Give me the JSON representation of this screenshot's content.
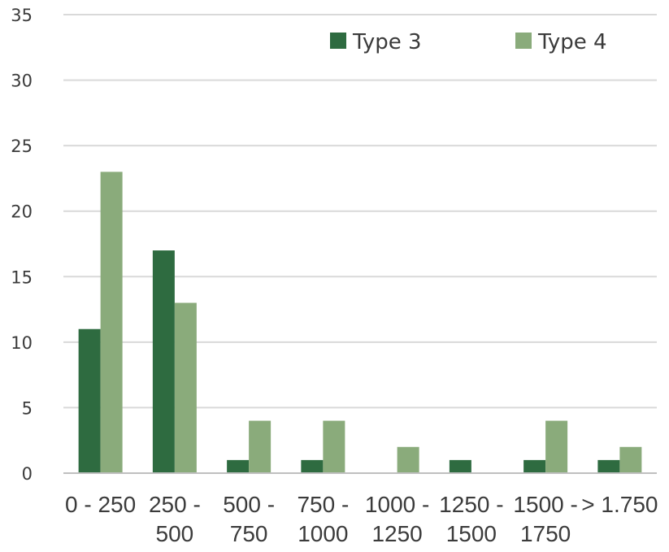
{
  "chart_data": {
    "type": "bar",
    "categories": [
      [
        "0 - 250"
      ],
      [
        "250 -",
        "500"
      ],
      [
        "500 -",
        "750"
      ],
      [
        "750 -",
        "1000"
      ],
      [
        "1000 -",
        "1250"
      ],
      [
        "1250 -",
        "1500"
      ],
      [
        "1500 -",
        "1750"
      ],
      [
        "> 1.750"
      ]
    ],
    "series": [
      {
        "name": "Type 3",
        "color": "#2e6b40",
        "values": [
          11,
          17,
          1,
          1,
          0,
          1,
          1,
          1
        ]
      },
      {
        "name": "Type 4",
        "color": "#8aab7b",
        "values": [
          23,
          13,
          4,
          4,
          2,
          0,
          4,
          2
        ]
      }
    ],
    "ylim": [
      0,
      35
    ],
    "yticks": [
      0,
      5,
      10,
      15,
      20,
      25,
      30,
      35
    ],
    "grid": true,
    "legend_position": "top-right"
  }
}
